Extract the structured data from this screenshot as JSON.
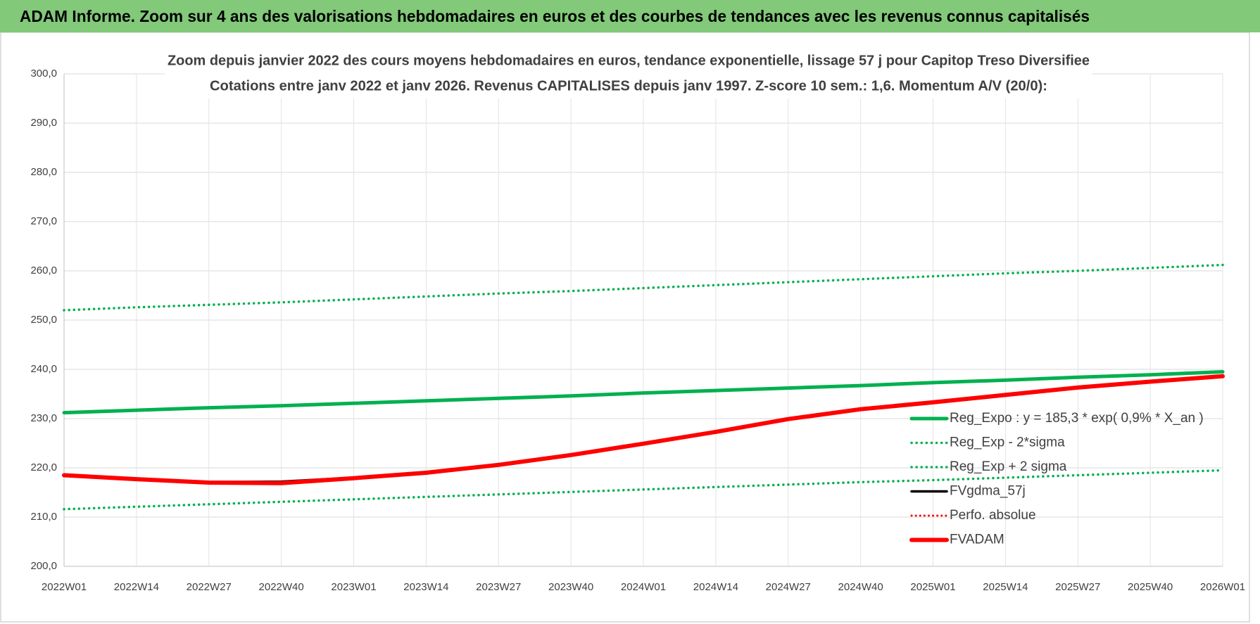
{
  "header": {
    "title": "ADAM Informe. Zoom sur 4 ans des valorisations hebdomadaires en euros et des courbes de tendances avec les revenus connus capitalisés"
  },
  "chart_data": {
    "type": "line",
    "title": "Zoom depuis janvier 2022 des cours moyens hebdomadaires en euros, tendance exponentielle, lissage 57 j pour Capitop Treso Diversifiee",
    "subtitle": "Cotations entre janv 2022 et janv 2026. Revenus CAPITALISES depuis janv 1997. Z-score 10 sem.: 1,6. Momentum A/V (20/0):",
    "categories": [
      "2022W01",
      "2022W14",
      "2022W27",
      "2022W40",
      "2023W01",
      "2023W14",
      "2023W27",
      "2023W40",
      "2024W01",
      "2024W14",
      "2024W27",
      "2024W40",
      "2025W01",
      "2025W14",
      "2025W27",
      "2025W40",
      "2026W01"
    ],
    "ylim": [
      200,
      300
    ],
    "yticks": [
      {
        "value": 200,
        "label": "200,0"
      },
      {
        "value": 210,
        "label": "210,0"
      },
      {
        "value": 220,
        "label": "220,0"
      },
      {
        "value": 230,
        "label": "230,0"
      },
      {
        "value": 240,
        "label": "240,0"
      },
      {
        "value": 250,
        "label": "250,0"
      },
      {
        "value": 260,
        "label": "260,0"
      },
      {
        "value": 270,
        "label": "270,0"
      },
      {
        "value": 280,
        "label": "280,0"
      },
      {
        "value": 290,
        "label": "290,0"
      },
      {
        "value": 300,
        "label": "300,0"
      }
    ],
    "grid": true,
    "legend": "right",
    "series": [
      {
        "name": "Reg_Expo : y = 185,3 * exp( 0,9% *  X_an )",
        "color": "#00b050",
        "style": "solid",
        "width": 5,
        "values": [
          231.2,
          231.7,
          232.2,
          232.6,
          233.1,
          233.6,
          234.1,
          234.6,
          235.2,
          235.7,
          236.2,
          236.7,
          237.3,
          237.8,
          238.4,
          238.9,
          239.5
        ]
      },
      {
        "name": "Reg_Exp - 2*sigma",
        "color": "#00b050",
        "style": "dotted",
        "width": 3.5,
        "values": [
          211.6,
          212.1,
          212.6,
          213.1,
          213.6,
          214.1,
          214.6,
          215.1,
          215.6,
          216.1,
          216.6,
          217.1,
          217.5,
          218.0,
          218.5,
          219.0,
          219.5
        ]
      },
      {
        "name": "Reg_Exp + 2 sigma",
        "color": "#00b050",
        "style": "dotted",
        "width": 3.5,
        "values": [
          252.0,
          252.6,
          253.1,
          253.6,
          254.2,
          254.8,
          255.4,
          255.9,
          256.5,
          257.1,
          257.7,
          258.3,
          258.9,
          259.5,
          260.0,
          260.6,
          261.2
        ]
      },
      {
        "name": "FVgdma_57j",
        "color": "#000000",
        "style": "solid",
        "width": 3.5,
        "values": [
          218.5,
          217.7,
          217.1,
          217.2,
          218.0,
          219.0,
          220.6,
          222.6,
          224.9,
          227.3,
          229.9,
          231.9,
          233.3,
          234.8,
          236.3,
          237.5,
          238.6
        ]
      },
      {
        "name": "Perfo. absolue",
        "color": "#ff0000",
        "style": "dotted",
        "width": 3,
        "values": [
          218.5,
          217.7,
          217.0,
          216.9,
          217.9,
          219.0,
          220.6,
          222.6,
          224.9,
          227.3,
          229.9,
          231.9,
          233.3,
          234.8,
          236.3,
          237.5,
          238.6
        ]
      },
      {
        "name": "FVADAM",
        "color": "#ff0000",
        "style": "solid",
        "width": 6,
        "values": [
          218.5,
          217.7,
          217.0,
          216.9,
          217.9,
          219.0,
          220.6,
          222.6,
          224.9,
          227.3,
          229.9,
          231.9,
          233.3,
          234.8,
          236.3,
          237.5,
          238.6
        ]
      }
    ]
  }
}
